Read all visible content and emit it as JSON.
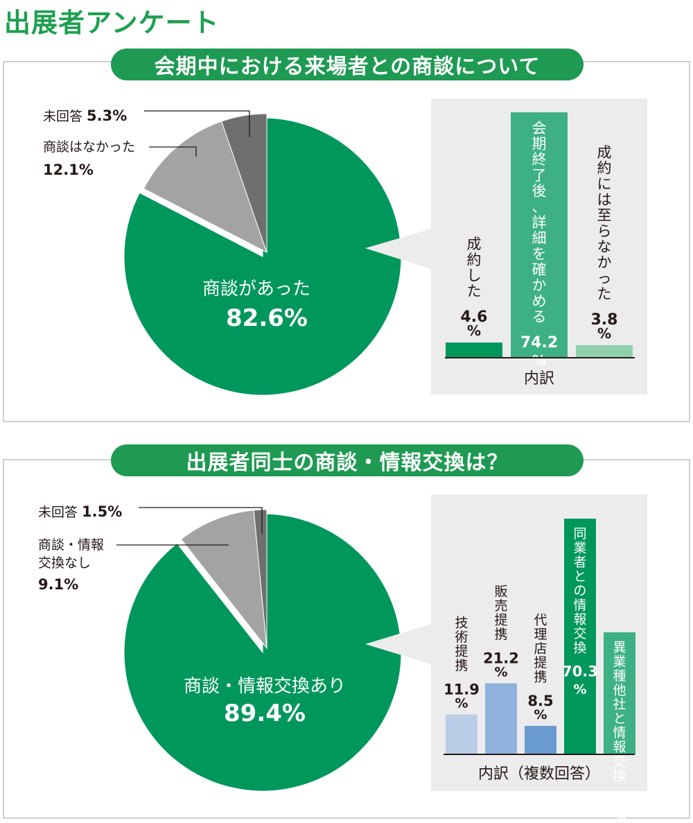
{
  "page_title": "出展者アンケート",
  "chart_data": [
    {
      "type": "pie",
      "title": "会期中における来場者との商談について",
      "slices": [
        {
          "label": "商談があった",
          "value": 82.6,
          "value_text": "82.6%",
          "color": "#00975c"
        },
        {
          "label": "商談はなかった",
          "value": 12.1,
          "value_text": "12.1%",
          "color": "#a3a3a3"
        },
        {
          "label": "未回答",
          "value": 5.3,
          "value_text": "5.3%",
          "color": "#6f6f6f"
        }
      ],
      "breakdown": {
        "type": "bar",
        "xlabel": "内訳",
        "ylim": [
          0,
          74.2
        ],
        "bars": [
          {
            "label": "成約した",
            "value": 4.6,
            "value_text": "4.6",
            "unit": "%",
            "color": "#00975c",
            "label_inside": false
          },
          {
            "label": "会期終了後、詳細を確かめる",
            "value": 74.2,
            "value_text": "74.2",
            "unit": "%",
            "color": "#3db184",
            "label_inside": true
          },
          {
            "label": "成約には至らなかった",
            "value": 3.8,
            "value_text": "3.8",
            "unit": "%",
            "color": "#8fcfac",
            "label_inside": false
          }
        ]
      }
    },
    {
      "type": "pie",
      "title": "出展者同士の商談・情報交換は？",
      "slices": [
        {
          "label": "商談・情報交換あり",
          "value": 89.4,
          "value_text": "89.4%",
          "color": "#00975c"
        },
        {
          "label": "商談・情報交換なし",
          "label_lines": [
            "商談・情報",
            "交換なし"
          ],
          "value": 9.1,
          "value_text": "9.1%",
          "color": "#a3a3a3"
        },
        {
          "label": "未回答",
          "value": 1.5,
          "value_text": "1.5%",
          "color": "#6f6f6f"
        }
      ],
      "breakdown": {
        "type": "bar",
        "xlabel": "内訳（複数回答）",
        "ylim": [
          0,
          70.3
        ],
        "bars": [
          {
            "label": "技術提携",
            "value": 11.9,
            "value_text": "11.9",
            "unit": "%",
            "color": "#b9cde7",
            "label_inside": false
          },
          {
            "label": "販売提携",
            "value": 21.2,
            "value_text": "21.2",
            "unit": "%",
            "color": "#8fb1db",
            "label_inside": false
          },
          {
            "label": "代理店提携",
            "value": 8.5,
            "value_text": "8.5",
            "unit": "%",
            "color": "#6a9bcf",
            "label_inside": false
          },
          {
            "label": "同業者との情報交換",
            "value": 70.3,
            "value_text": "70.3",
            "unit": "%",
            "color": "#00975c",
            "label_inside": true
          },
          {
            "label": "異業種他社と情報交換",
            "value": 36.4,
            "value_text": "36.4",
            "unit": "%",
            "color": "#3db184",
            "label_inside": true
          }
        ]
      }
    }
  ]
}
